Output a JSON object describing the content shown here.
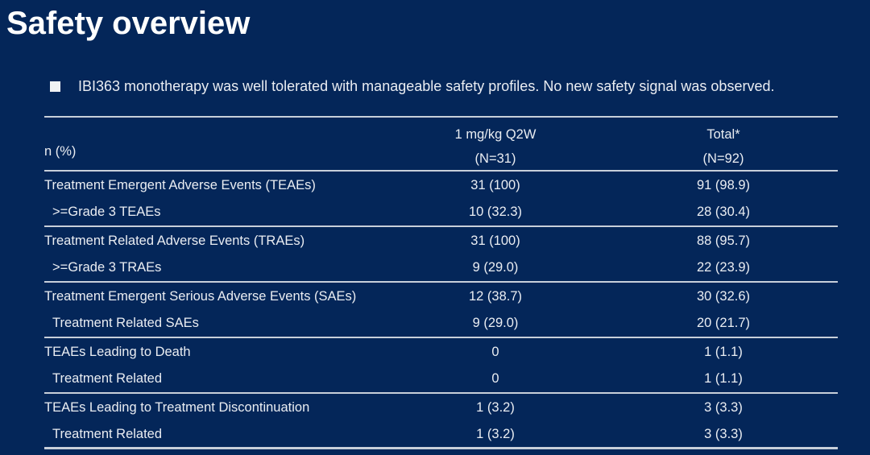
{
  "slide": {
    "title": "Safety overview",
    "bullet": "IBI363 monotherapy was well tolerated with manageable safety profiles. No new safety signal was observed."
  },
  "table": {
    "header": {
      "row_label": "n (%)",
      "col1_line1": "1 mg/kg Q2W",
      "col1_line2": "(N=31)",
      "col2_line1": "Total*",
      "col2_line2": "(N=92)"
    },
    "rows": [
      {
        "label": "Treatment Emergent Adverse Events (TEAEs)",
        "indent": false,
        "col1": "31 (100)",
        "col2": "91 (98.9)",
        "divider_after": false
      },
      {
        "label": ">=Grade 3 TEAEs",
        "indent": true,
        "col1": "10 (32.3)",
        "col2": "28 (30.4)",
        "divider_after": true
      },
      {
        "label": "Treatment Related Adverse Events (TRAEs)",
        "indent": false,
        "col1": "31 (100)",
        "col2": "88 (95.7)",
        "divider_after": false
      },
      {
        "label": ">=Grade 3 TRAEs",
        "indent": true,
        "col1": "9 (29.0)",
        "col2": "22 (23.9)",
        "divider_after": true
      },
      {
        "label": "Treatment Emergent Serious Adverse Events (SAEs)",
        "indent": false,
        "col1": "12 (38.7)",
        "col2": "30 (32.6)",
        "divider_after": false
      },
      {
        "label": "Treatment Related SAEs",
        "indent": true,
        "col1": "9 (29.0)",
        "col2": "20 (21.7)",
        "divider_after": true
      },
      {
        "label": "TEAEs Leading to Death",
        "indent": false,
        "col1": "0",
        "col2": "1 (1.1)",
        "divider_after": false
      },
      {
        "label": "Treatment Related",
        "indent": true,
        "col1": "0",
        "col2": "1 (1.1)",
        "divider_after": true
      },
      {
        "label": "TEAEs Leading to Treatment Discontinuation",
        "indent": false,
        "col1": "1 (3.2)",
        "col2": "3 (3.3)",
        "divider_after": false
      },
      {
        "label": "Treatment Related",
        "indent": true,
        "col1": "1 (3.2)",
        "col2": "3 (3.3)",
        "divider_after": false
      }
    ]
  },
  "colors": {
    "background": "#042659",
    "divider_line": "#C8CFDA",
    "body_text": "#EAEDF2",
    "title_text": "#FFFFFF"
  }
}
